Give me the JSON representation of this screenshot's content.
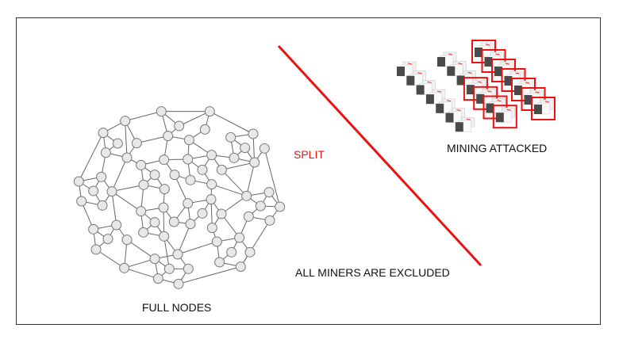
{
  "labels": {
    "split": "SPLIT",
    "mining_attacked": "MINING ATTACKED",
    "all_miners_excluded": "ALL MINERS ARE EXCLUDED",
    "full_nodes": "FULL NODES"
  },
  "colors": {
    "split_line": "#ee1111",
    "split_text": "#ee1111",
    "attacked_box": "#ee1111",
    "node_fill": "#e8e8e8",
    "node_stroke": "#777777",
    "edge": "#666666"
  },
  "icons": {
    "miner": "asic-miner-icon"
  }
}
